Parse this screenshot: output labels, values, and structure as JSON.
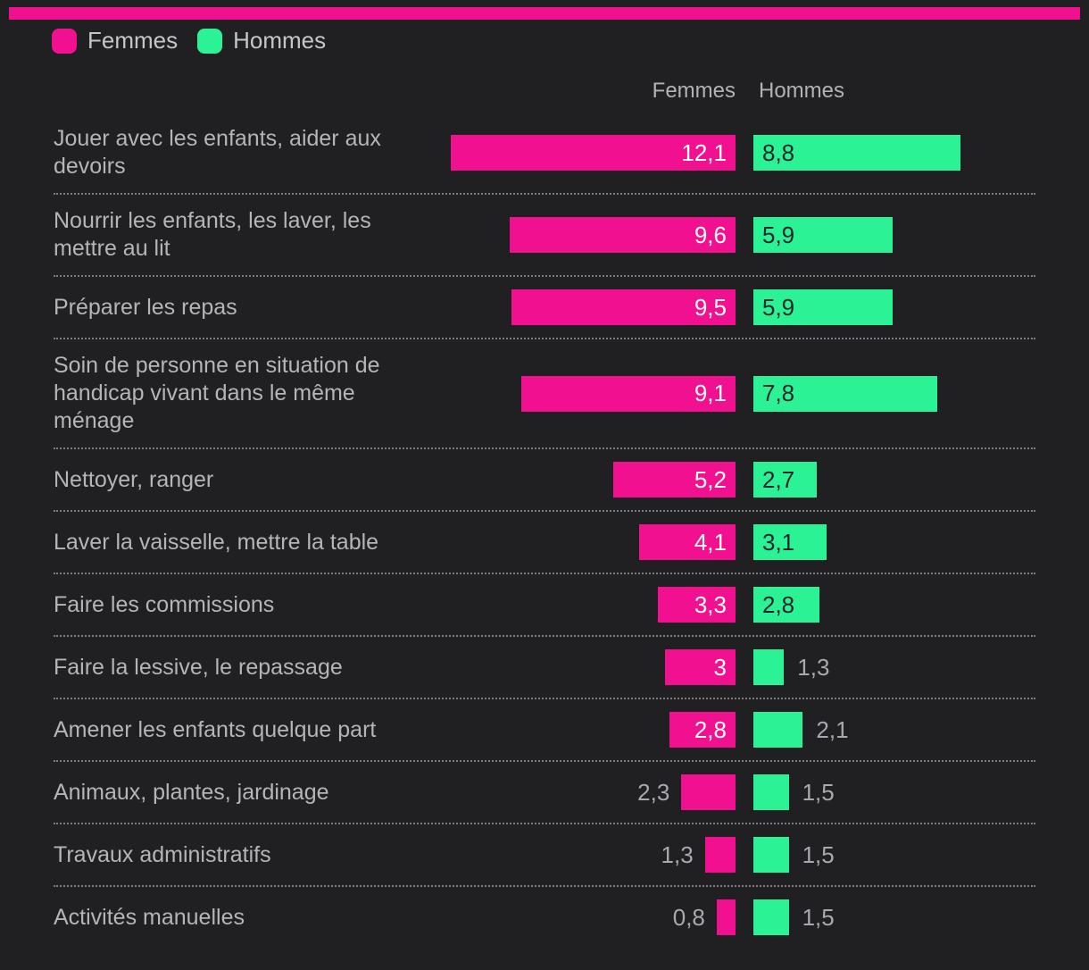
{
  "accent_colors": {
    "femmes_pink": "#f1108f",
    "hommes_green": "#2bf294",
    "background": "#202023",
    "value_on_pink": "#ffffff",
    "value_on_green": "#26262a",
    "label_gray": "#b5b5b9",
    "separator_gray": "#7d7d81"
  },
  "legend": {
    "femmes": {
      "label": "Femmes",
      "color": "#f1108f"
    },
    "hommes": {
      "label": "Hommes",
      "color": "#2bf294"
    }
  },
  "column_headers": {
    "femmes": "Femmes",
    "hommes": "Hommes"
  },
  "chart_data": {
    "type": "bar",
    "orientation": "horizontal",
    "title": "",
    "legend_position": "top-left",
    "value_format": "french-decimal-comma",
    "xlim": [
      0,
      12.5
    ],
    "grid": false,
    "categories": [
      "Jouer avec les enfants, aider aux devoirs",
      "Nourrir les enfants, les laver, les mettre au lit",
      "Préparer les repas",
      "Soin de personne en situation de handicap vivant dans le même ménage",
      "Nettoyer, ranger",
      "Laver la vaisselle, mettre la table",
      "Faire les commissions",
      "Faire la lessive, le repassage",
      "Amener les enfants quelque part",
      "Animaux, plantes, jardinage",
      "Travaux administratifs",
      "Activités manuelles"
    ],
    "series": [
      {
        "name": "Femmes",
        "color": "#f1108f",
        "values": [
          12.1,
          9.6,
          9.5,
          9.1,
          5.2,
          4.1,
          3.3,
          3,
          2.8,
          2.3,
          1.3,
          0.8
        ]
      },
      {
        "name": "Hommes",
        "color": "#2bf294",
        "values": [
          8.8,
          5.9,
          5.9,
          7.8,
          2.7,
          3.1,
          2.8,
          1.3,
          2.1,
          1.5,
          1.5,
          1.5
        ]
      }
    ]
  },
  "rows": [
    {
      "label": "Jouer avec les enfants, aider aux devoirs",
      "femmes": {
        "value": 12.1,
        "display": "12,1",
        "inside": true
      },
      "hommes": {
        "value": 8.8,
        "display": "8,8",
        "inside": true
      }
    },
    {
      "label": "Nourrir les enfants, les laver, les mettre au lit",
      "femmes": {
        "value": 9.6,
        "display": "9,6",
        "inside": true
      },
      "hommes": {
        "value": 5.9,
        "display": "5,9",
        "inside": true
      }
    },
    {
      "label": "Préparer les repas",
      "femmes": {
        "value": 9.5,
        "display": "9,5",
        "inside": true
      },
      "hommes": {
        "value": 5.9,
        "display": "5,9",
        "inside": true
      }
    },
    {
      "label": "Soin de personne en situation de handicap vivant dans le même ménage",
      "femmes": {
        "value": 9.1,
        "display": "9,1",
        "inside": true
      },
      "hommes": {
        "value": 7.8,
        "display": "7,8",
        "inside": true
      }
    },
    {
      "label": "Nettoyer, ranger",
      "femmes": {
        "value": 5.2,
        "display": "5,2",
        "inside": true
      },
      "hommes": {
        "value": 2.7,
        "display": "2,7",
        "inside": true
      }
    },
    {
      "label": "Laver la vaisselle, mettre la table",
      "femmes": {
        "value": 4.1,
        "display": "4,1",
        "inside": true
      },
      "hommes": {
        "value": 3.1,
        "display": "3,1",
        "inside": true
      }
    },
    {
      "label": "Faire les commissions",
      "femmes": {
        "value": 3.3,
        "display": "3,3",
        "inside": true
      },
      "hommes": {
        "value": 2.8,
        "display": "2,8",
        "inside": true
      }
    },
    {
      "label": "Faire la lessive, le repassage",
      "femmes": {
        "value": 3,
        "display": "3",
        "inside": true
      },
      "hommes": {
        "value": 1.3,
        "display": "1,3",
        "inside": false
      }
    },
    {
      "label": "Amener les enfants quelque part",
      "femmes": {
        "value": 2.8,
        "display": "2,8",
        "inside": true
      },
      "hommes": {
        "value": 2.1,
        "display": "2,1",
        "inside": false
      }
    },
    {
      "label": "Animaux, plantes, jardinage",
      "femmes": {
        "value": 2.3,
        "display": "2,3",
        "inside": false
      },
      "hommes": {
        "value": 1.5,
        "display": "1,5",
        "inside": false
      }
    },
    {
      "label": "Travaux administratifs",
      "femmes": {
        "value": 1.3,
        "display": "1,3",
        "inside": false
      },
      "hommes": {
        "value": 1.5,
        "display": "1,5",
        "inside": false
      }
    },
    {
      "label": "Activités manuelles",
      "femmes": {
        "value": 0.8,
        "display": "0,8",
        "inside": false
      },
      "hommes": {
        "value": 1.5,
        "display": "1,5",
        "inside": false
      }
    }
  ]
}
